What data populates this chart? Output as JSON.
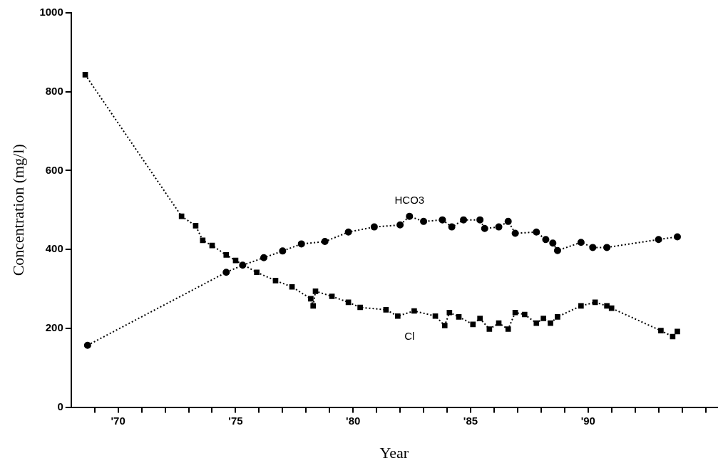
{
  "chart_data": {
    "type": "line",
    "xlabel": "Year",
    "ylabel": "Concentration (mg/l)",
    "xlim": [
      1968,
      1995.5
    ],
    "ylim": [
      0,
      1000
    ],
    "xticks": [
      {
        "value": 1969,
        "label": null
      },
      {
        "value": 1970,
        "label": "'70"
      },
      {
        "value": 1971,
        "label": null
      },
      {
        "value": 1972,
        "label": null
      },
      {
        "value": 1973,
        "label": null
      },
      {
        "value": 1974,
        "label": null
      },
      {
        "value": 1975,
        "label": "'75"
      },
      {
        "value": 1976,
        "label": null
      },
      {
        "value": 1977,
        "label": null
      },
      {
        "value": 1978,
        "label": null
      },
      {
        "value": 1979,
        "label": null
      },
      {
        "value": 1980,
        "label": "'80"
      },
      {
        "value": 1981,
        "label": null
      },
      {
        "value": 1982,
        "label": null
      },
      {
        "value": 1983,
        "label": null
      },
      {
        "value": 1984,
        "label": null
      },
      {
        "value": 1985,
        "label": "'85"
      },
      {
        "value": 1986,
        "label": null
      },
      {
        "value": 1987,
        "label": null
      },
      {
        "value": 1988,
        "label": null
      },
      {
        "value": 1989,
        "label": null
      },
      {
        "value": 1990,
        "label": "'90"
      },
      {
        "value": 1991,
        "label": null
      },
      {
        "value": 1992,
        "label": null
      },
      {
        "value": 1993,
        "label": null
      },
      {
        "value": 1994,
        "label": null
      },
      {
        "value": 1995,
        "label": null
      }
    ],
    "yticks": [
      0,
      200,
      400,
      600,
      800,
      1000
    ],
    "grid": false,
    "legend": false,
    "line_style": "dotted",
    "series": [
      {
        "name": "HCO3",
        "color": "#000000",
        "marker": "circle",
        "x": [
          1968.7,
          1974.6,
          1975.3,
          1976.2,
          1977.0,
          1977.8,
          1978.8,
          1979.8,
          1980.9,
          1982.0,
          1982.4,
          1983.0,
          1983.8,
          1984.2,
          1984.7,
          1985.4,
          1985.6,
          1986.2,
          1986.6,
          1986.9,
          1987.8,
          1988.2,
          1988.5,
          1988.7,
          1989.7,
          1990.2,
          1990.8,
          1993.0,
          1993.8
        ],
        "values": [
          157,
          342,
          360,
          379,
          396,
          414,
          420,
          444,
          457,
          462,
          484,
          471,
          475,
          457,
          475,
          475,
          453,
          457,
          471,
          441,
          444,
          425,
          416,
          397,
          418,
          405,
          405,
          425,
          432
        ]
      },
      {
        "name": "Cl",
        "color": "#000000",
        "marker": "square",
        "x": [
          1968.6,
          1972.7,
          1973.3,
          1973.6,
          1974.0,
          1974.6,
          1975.0,
          1975.9,
          1976.7,
          1977.4,
          1978.2,
          1978.3,
          1978.4,
          1979.1,
          1979.8,
          1980.3,
          1981.4,
          1981.9,
          1982.6,
          1983.5,
          1983.9,
          1984.1,
          1984.5,
          1985.1,
          1985.4,
          1985.8,
          1986.2,
          1986.6,
          1986.9,
          1987.3,
          1987.8,
          1988.1,
          1988.4,
          1988.7,
          1989.7,
          1990.3,
          1990.8,
          1991.0,
          1993.1,
          1993.6,
          1993.8
        ],
        "values": [
          843,
          484,
          460,
          423,
          410,
          386,
          372,
          342,
          321,
          305,
          275,
          257,
          294,
          281,
          266,
          253,
          247,
          231,
          244,
          231,
          207,
          240,
          229,
          210,
          225,
          198,
          213,
          198,
          240,
          235,
          213,
          225,
          213,
          229,
          257,
          266,
          257,
          251,
          194,
          179,
          192
        ]
      }
    ]
  }
}
